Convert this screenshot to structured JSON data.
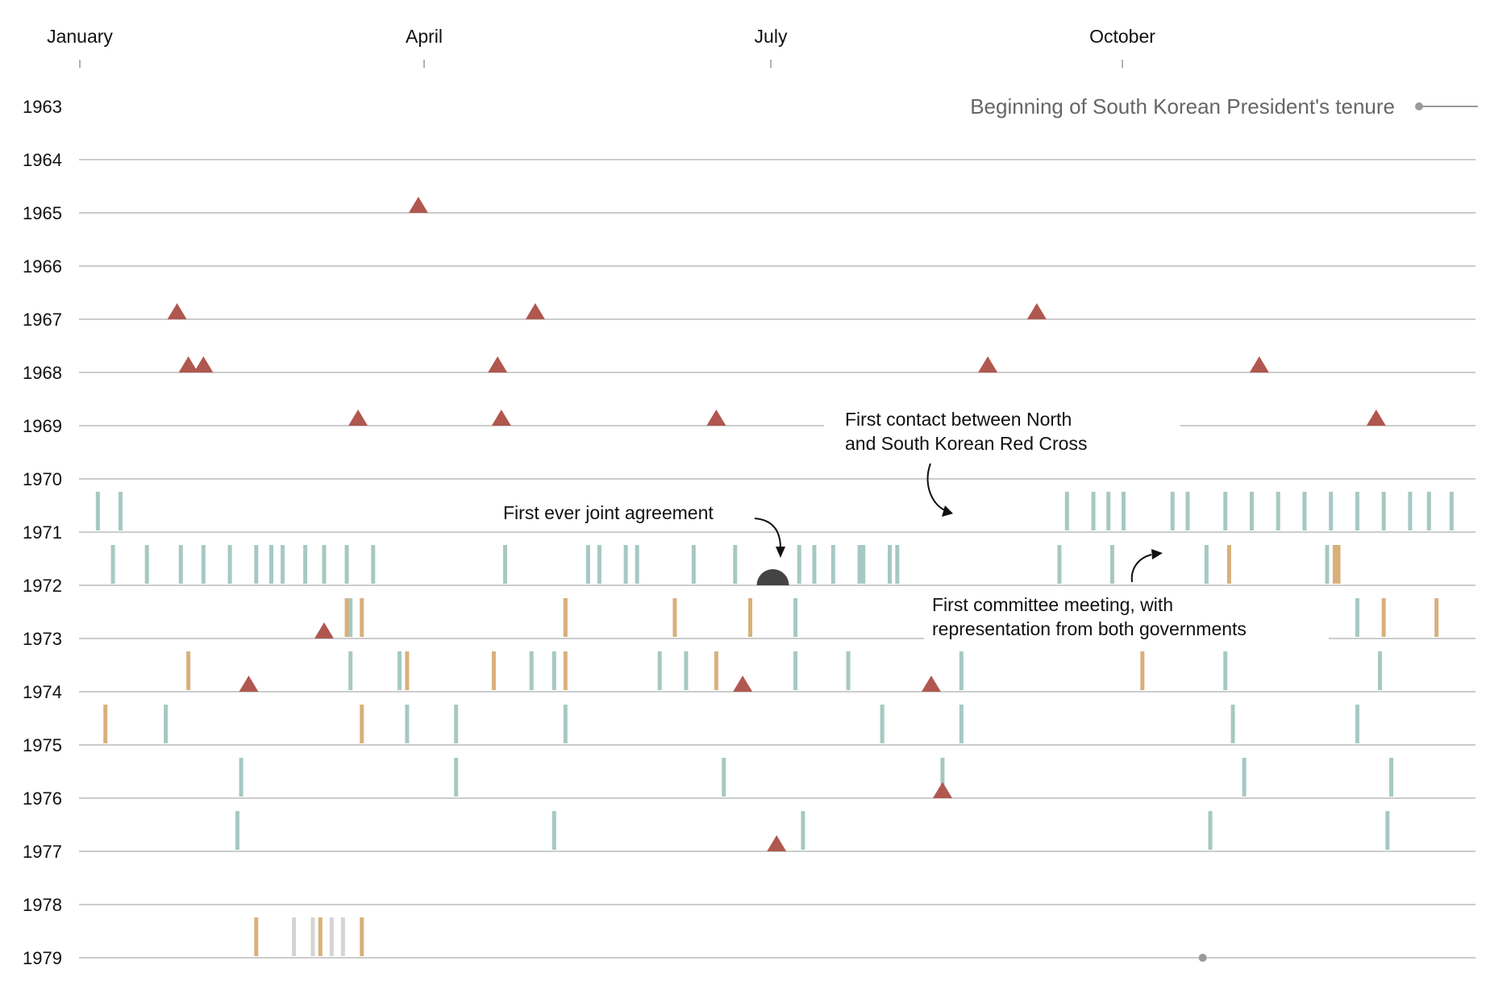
{
  "chart_data": {
    "type": "timeline",
    "months": [
      "January",
      "April",
      "July",
      "October"
    ],
    "years": [
      1963,
      1964,
      1965,
      1966,
      1967,
      1968,
      1969,
      1970,
      1971,
      1972,
      1973,
      1974,
      1975,
      1976,
      1977,
      1978,
      1979
    ],
    "legend": "Beginning of South Korean President's tenure",
    "colors": {
      "provocation": "#b0574f",
      "dialogue": "#a6c8c3",
      "government": "#d9b07a",
      "other": "#d4d4d4",
      "milestone": "#444444",
      "gridline": "#bbbbbb",
      "tenure": "#9a9a9a"
    },
    "provocations": [
      {
        "year": 1965,
        "date": "04-01"
      },
      {
        "year": 1967,
        "date": "01-27"
      },
      {
        "year": 1967,
        "date": "05-02"
      },
      {
        "year": 1967,
        "date": "09-12"
      },
      {
        "year": 1968,
        "date": "01-30"
      },
      {
        "year": 1968,
        "date": "02-03"
      },
      {
        "year": 1968,
        "date": "04-22"
      },
      {
        "year": 1968,
        "date": "08-30"
      },
      {
        "year": 1968,
        "date": "11-10"
      },
      {
        "year": 1969,
        "date": "03-16"
      },
      {
        "year": 1969,
        "date": "04-23"
      },
      {
        "year": 1969,
        "date": "06-19"
      },
      {
        "year": 1969,
        "date": "12-11"
      },
      {
        "year": 1973,
        "date": "03-07"
      },
      {
        "year": 1974,
        "date": "02-15"
      },
      {
        "year": 1974,
        "date": "06-26"
      },
      {
        "year": 1974,
        "date": "08-15"
      },
      {
        "year": 1976,
        "date": "08-18"
      },
      {
        "year": 1977,
        "date": "07-05"
      }
    ],
    "dialogue": [
      {
        "year": 1971,
        "dates": [
          "09-20",
          "09-27",
          "10-01",
          "10-05",
          "10-18",
          "10-22",
          "11-01",
          "11-08",
          "11-15",
          "11-22",
          "11-29",
          "12-06",
          "12-13",
          "12-20",
          "12-25",
          "12-31",
          "01-06",
          "01-12"
        ]
      },
      {
        "year": 1972,
        "dates": [
          "01-10",
          "01-19",
          "01-28",
          "02-03",
          "02-10",
          "02-17",
          "02-21",
          "02-24",
          "03-02",
          "03-07",
          "03-13",
          "03-20",
          "04-24",
          "05-16",
          "05-19",
          "05-26",
          "05-29",
          "06-13",
          "06-24",
          "07-11",
          "07-15",
          "07-20",
          "07-27",
          "07-28",
          "08-04",
          "08-06",
          "09-18",
          "10-02",
          "10-27",
          "11-28"
        ]
      },
      {
        "year": 1973,
        "dates": [
          "03-14",
          "05-10",
          "07-10",
          "12-06"
        ]
      },
      {
        "year": 1974,
        "dates": [
          "03-27",
          "03-14",
          "05-01",
          "05-07",
          "06-04",
          "06-11",
          "07-10",
          "07-24",
          "08-23",
          "11-01",
          "12-12"
        ]
      },
      {
        "year": 1975,
        "dates": [
          "01-24",
          "03-29",
          "04-11",
          "05-10",
          "08-02",
          "08-23",
          "11-03",
          "12-06"
        ]
      },
      {
        "year": 1976,
        "dates": [
          "02-13",
          "04-11",
          "06-21",
          "08-18",
          "11-06",
          "12-15"
        ]
      },
      {
        "year": 1977,
        "dates": [
          "02-12",
          "05-07",
          "07-12",
          "10-28",
          "12-14"
        ]
      }
    ],
    "government": [
      {
        "year": 1972,
        "dates": [
          "11-02",
          "11-30",
          "12-01"
        ]
      },
      {
        "year": 1973,
        "dates": [
          "03-13",
          "03-17",
          "05-10",
          "06-08",
          "06-28",
          "12-13",
          "12-27"
        ]
      },
      {
        "year": 1974,
        "dates": [
          "01-30",
          "03-29",
          "04-21",
          "05-10",
          "06-19",
          "10-10"
        ]
      },
      {
        "year": 1975,
        "dates": [
          "01-08",
          "03-17"
        ]
      },
      {
        "year": 1979,
        "dates": [
          "02-17",
          "03-06",
          "03-17"
        ]
      }
    ],
    "other": [
      {
        "year": 1979,
        "dates": [
          "02-27",
          "03-04",
          "03-09",
          "03-12"
        ]
      }
    ],
    "milestone": {
      "year": 1972,
      "date": "07-04"
    },
    "tenure_start": {
      "year": 1979,
      "date": "10-26"
    },
    "annotations": [
      {
        "text_lines": [
          "First contact between North",
          "and South Korean Red Cross"
        ]
      },
      {
        "text_lines": [
          "First ever joint agreement"
        ]
      },
      {
        "text_lines": [
          "First committee meeting, with",
          "representation from both governments"
        ]
      }
    ]
  }
}
